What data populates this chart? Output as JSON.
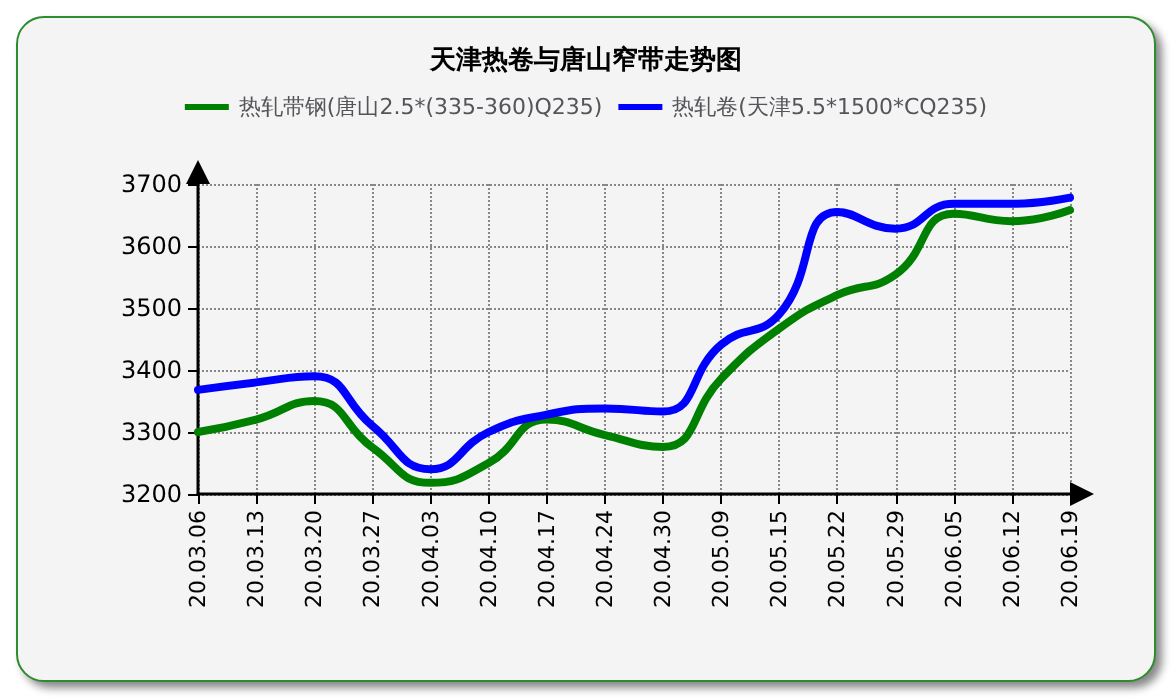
{
  "chart_data": {
    "type": "line",
    "title": "天津热卷与唐山窄带走势图",
    "categories": [
      "20.03.06",
      "20.03.13",
      "20.03.20",
      "20.03.27",
      "20.04.03",
      "20.04.10",
      "20.04.17",
      "20.04.24",
      "20.04.30",
      "20.05.09",
      "20.05.15",
      "20.05.22",
      "20.05.29",
      "20.06.05",
      "20.06.12",
      "20.06.19"
    ],
    "series": [
      {
        "name": "热轧带钢(唐山2.5*(335-360)Q235)",
        "color": "#008000",
        "values": [
          3300,
          3320,
          3350,
          3275,
          3218,
          3250,
          3320,
          3295,
          3276,
          3386,
          3467,
          3521,
          3554,
          3652,
          3640,
          3658
        ]
      },
      {
        "name": "热轧卷(天津5.5*1500*CQ235)",
        "color": "#0000ff",
        "values": [
          3368,
          3380,
          3390,
          3310,
          3240,
          3300,
          3328,
          3338,
          3333,
          3441,
          3490,
          3655,
          3628,
          3668,
          3668,
          3678
        ]
      }
    ],
    "ylim": [
      3200,
      3700
    ],
    "yticks": [
      3200,
      3300,
      3400,
      3500,
      3600,
      3700
    ],
    "grid": true,
    "legend": "top",
    "marker": "none",
    "line_style": "solid"
  }
}
